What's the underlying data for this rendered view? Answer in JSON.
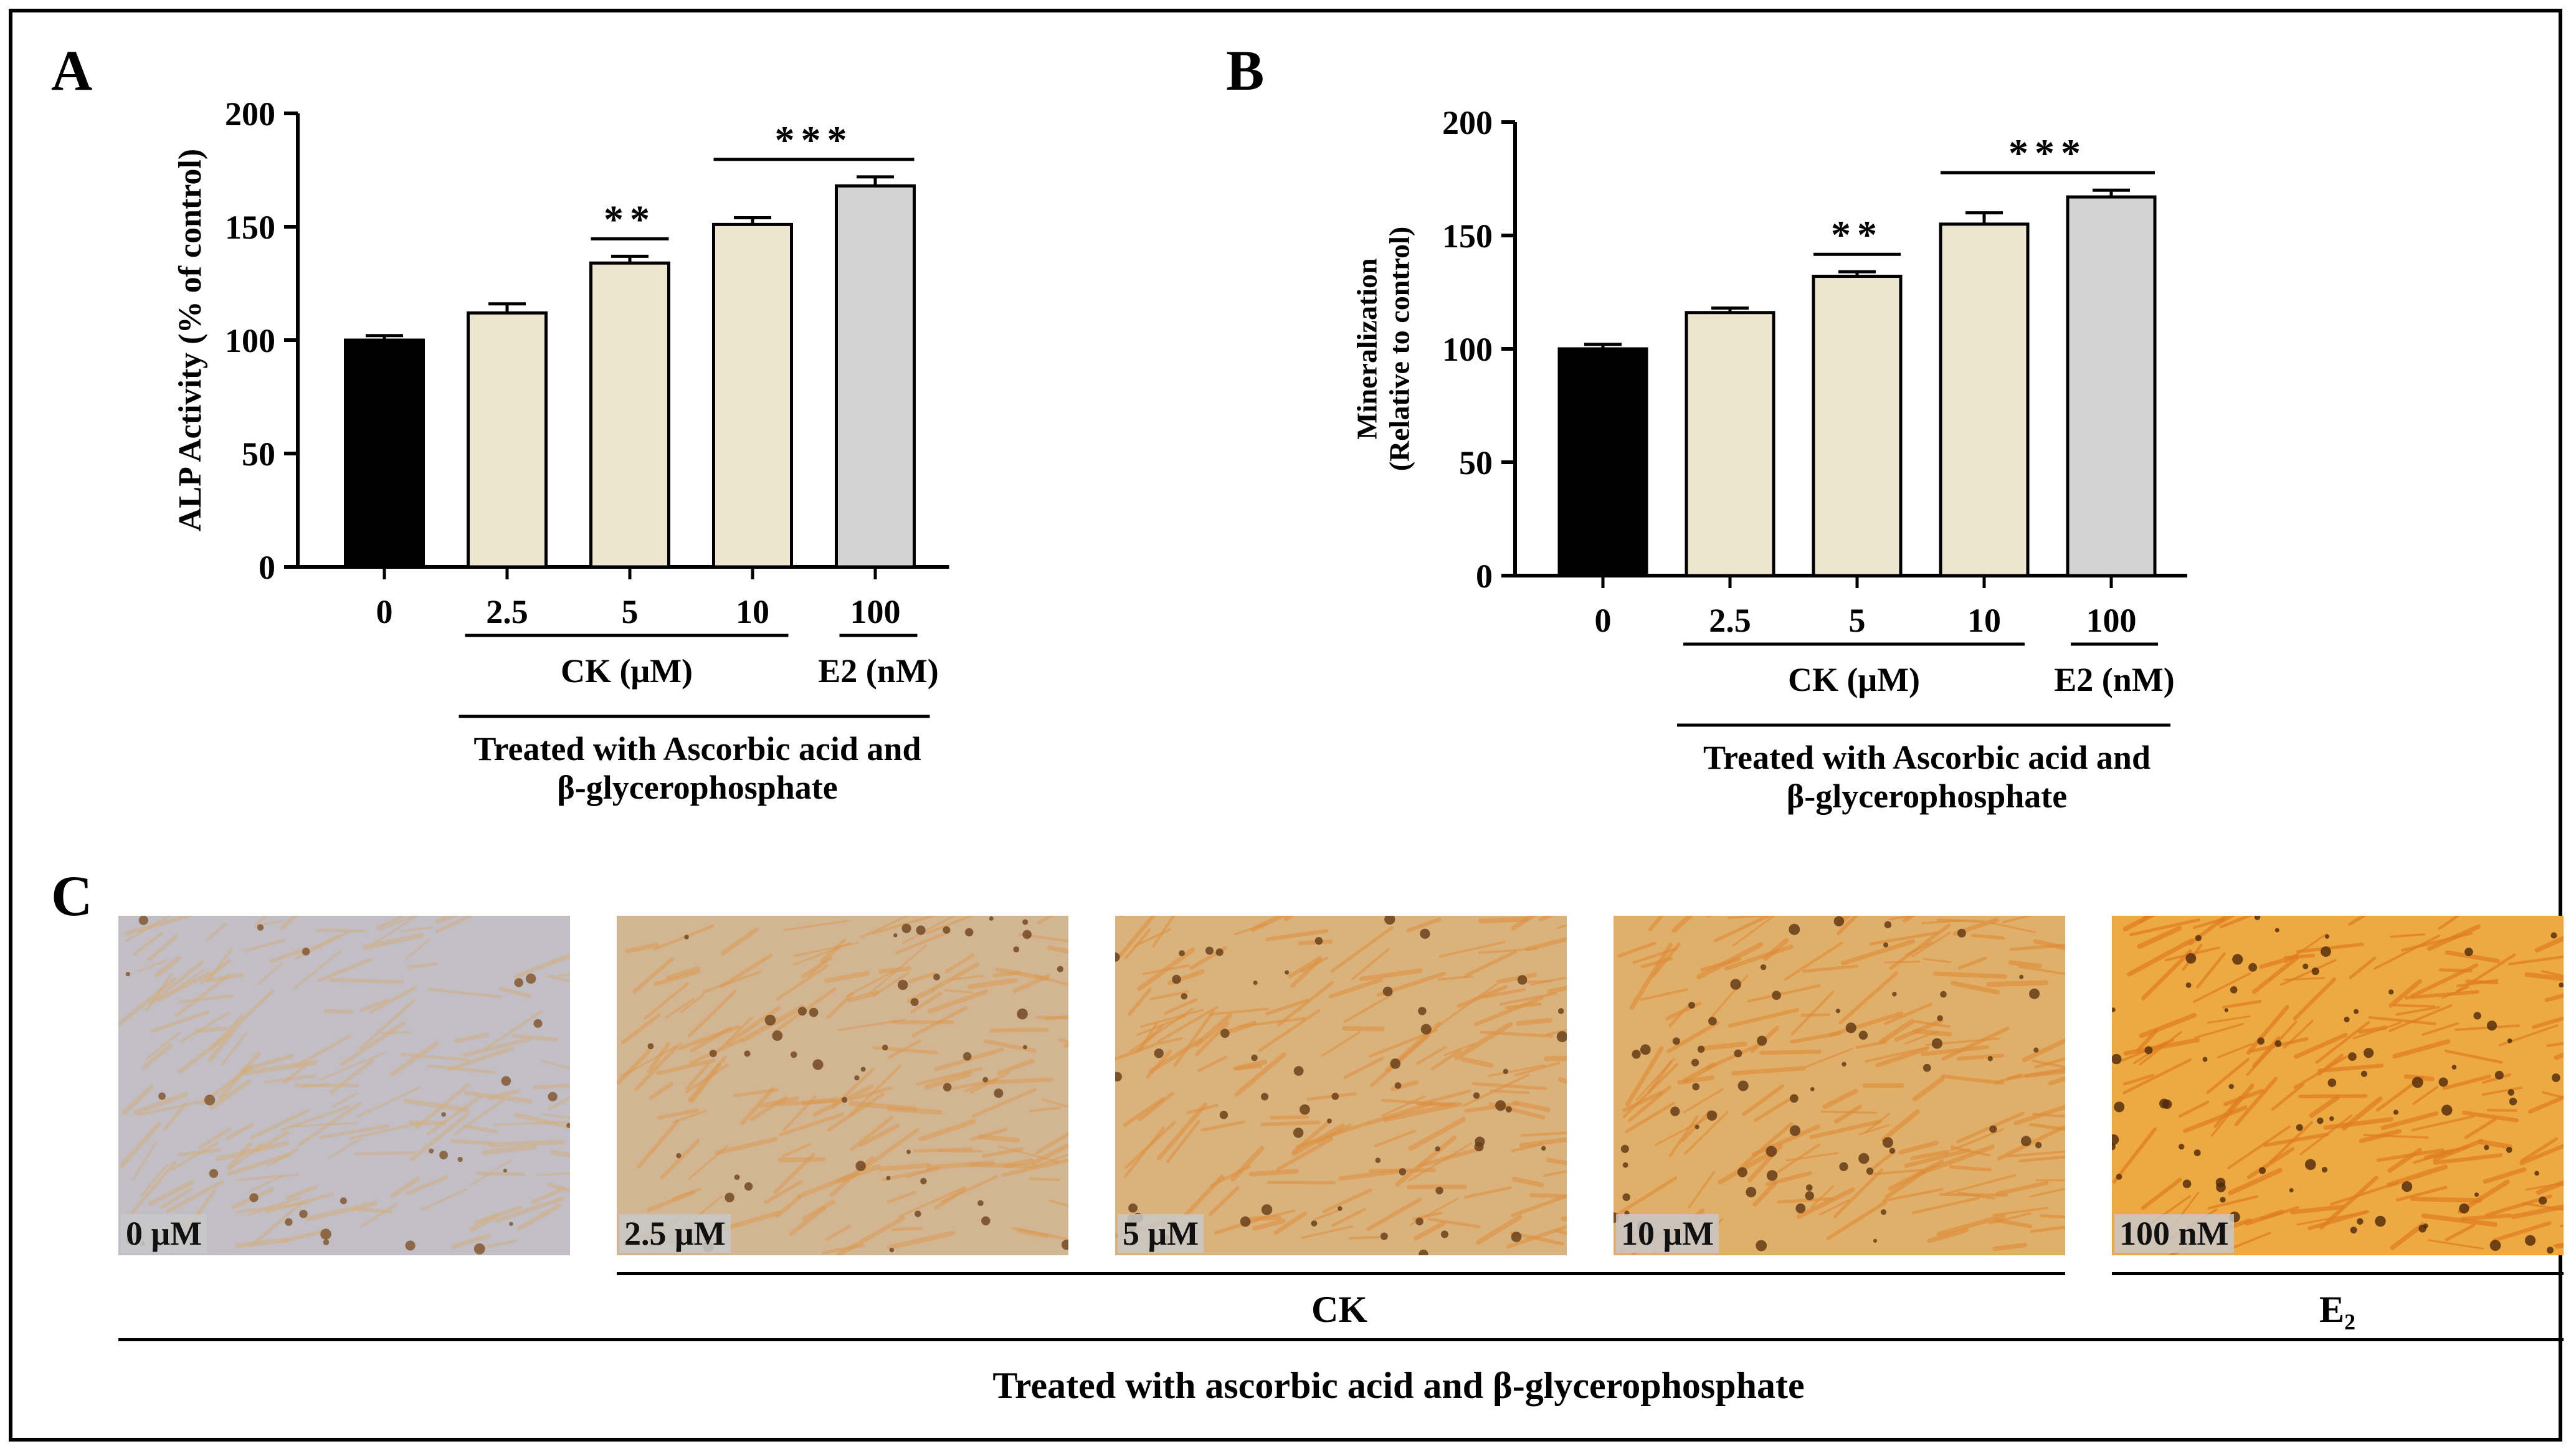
{
  "chart_data": [
    {
      "panel": "A",
      "type": "bar",
      "categories": [
        "0",
        "2.5",
        "5",
        "10",
        "100"
      ],
      "values": [
        100,
        112,
        134,
        151,
        168
      ],
      "errors": [
        2,
        4,
        3,
        3,
        4
      ],
      "colors": [
        "#000000",
        "#ede6cf",
        "#ede6cf",
        "#ede6cf",
        "#d3d3d3"
      ],
      "ylabel": "ALP Activity (% of control)",
      "ylim": [
        0,
        200
      ],
      "yticks": [
        0,
        50,
        100,
        150,
        200
      ],
      "group_labels": [
        "CK (μM)",
        "E2 (nM)"
      ],
      "treatment_label": [
        "Treated with Ascorbic acid  and",
        "β-glycerophosphate"
      ],
      "significance": [
        {
          "from": 2,
          "to": 2,
          "label": "**"
        },
        {
          "from": 3,
          "to": 4,
          "label": "***"
        }
      ]
    },
    {
      "panel": "B",
      "type": "bar",
      "categories": [
        "0",
        "2.5",
        "5",
        "10",
        "100"
      ],
      "values": [
        100,
        116,
        132,
        155,
        167
      ],
      "errors": [
        2,
        2,
        2,
        5,
        3
      ],
      "colors": [
        "#000000",
        "#ede6cf",
        "#ede6cf",
        "#ede6cf",
        "#d3d3d3"
      ],
      "ylabel": [
        "Mineralization",
        "(Relative to control)"
      ],
      "ylim": [
        0,
        200
      ],
      "yticks": [
        0,
        50,
        100,
        150,
        200
      ],
      "group_labels": [
        "CK (μM)",
        "E2 (nM)"
      ],
      "treatment_label": [
        "Treated with Ascorbic acid  and",
        "β-glycerophosphate"
      ],
      "significance": [
        {
          "from": 2,
          "to": 2,
          "label": "**"
        },
        {
          "from": 3,
          "to": 4,
          "label": "***"
        }
      ]
    }
  ],
  "panels": {
    "a_letter": "A",
    "b_letter": "B",
    "c_letter": "C"
  },
  "micrographs": [
    {
      "label": "0 μM",
      "stain_intensity": 0.15
    },
    {
      "label": "2.5 μM",
      "stain_intensity": 0.45
    },
    {
      "label": "5 μM",
      "stain_intensity": 0.6
    },
    {
      "label": "10 μM",
      "stain_intensity": 0.7
    },
    {
      "label": "100 nM",
      "stain_intensity": 0.95
    }
  ],
  "panel_c": {
    "ck_label": "CK",
    "e2_label": "E₂",
    "treatment_label": "Treated with ascorbic acid and β-glycerophosphate"
  },
  "colors": {
    "control": "#000000",
    "ck": "#ede6cf",
    "e2": "#d3d3d3"
  }
}
